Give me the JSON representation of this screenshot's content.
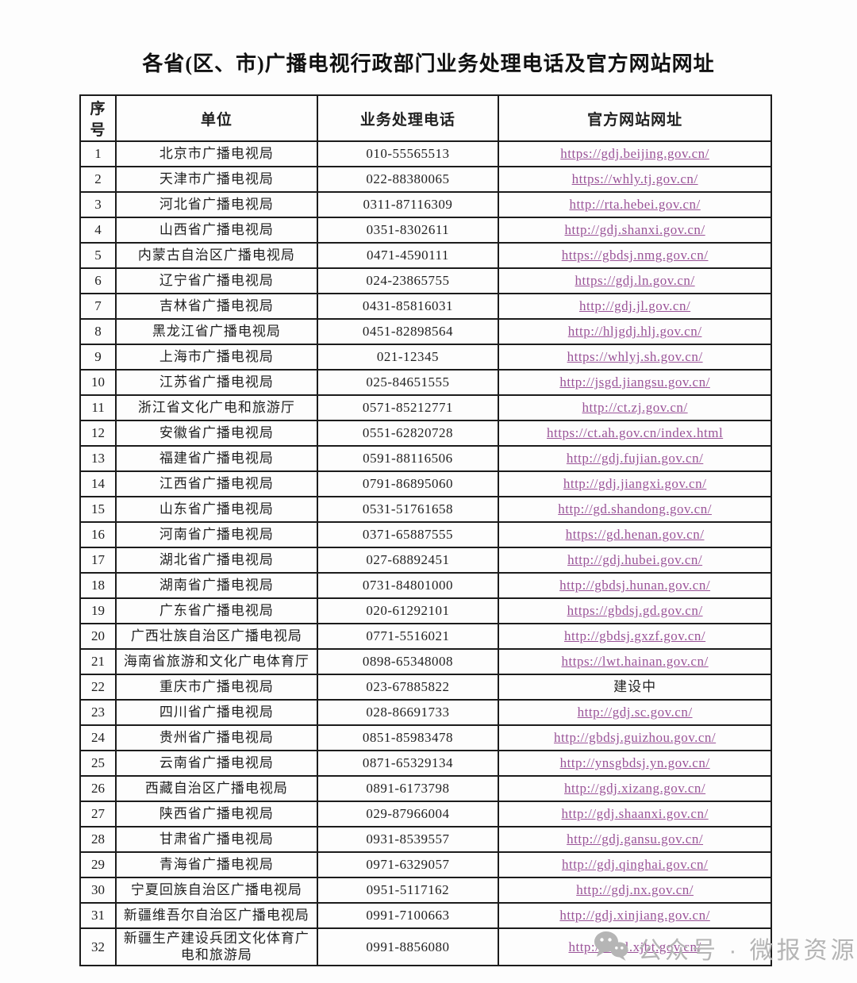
{
  "title": "各省(区、市)广播电视行政部门业务处理电话及官方网站网址",
  "table": {
    "headers": [
      "序号",
      "单位",
      "业务处理电话",
      "官方网站网址"
    ],
    "rows": [
      {
        "no": "1",
        "unit": "北京市广播电视局",
        "phone": "010-55565513",
        "site": "https://gdj.beijing.gov.cn/",
        "is_link": true
      },
      {
        "no": "2",
        "unit": "天津市广播电视局",
        "phone": "022-88380065",
        "site": "https://whly.tj.gov.cn/",
        "is_link": true
      },
      {
        "no": "3",
        "unit": "河北省广播电视局",
        "phone": "0311-87116309",
        "site": "http://rta.hebei.gov.cn/",
        "is_link": true
      },
      {
        "no": "4",
        "unit": "山西省广播电视局",
        "phone": "0351-8302611",
        "site": "http://gdj.shanxi.gov.cn/",
        "is_link": true
      },
      {
        "no": "5",
        "unit": "内蒙古自治区广播电视局",
        "phone": "0471-4590111",
        "site": "https://gbdsj.nmg.gov.cn/",
        "is_link": true
      },
      {
        "no": "6",
        "unit": "辽宁省广播电视局",
        "phone": "024-23865755",
        "site": "https://gdj.ln.gov.cn/",
        "is_link": true
      },
      {
        "no": "7",
        "unit": "吉林省广播电视局",
        "phone": "0431-85816031",
        "site": "http://gdj.jl.gov.cn/",
        "is_link": true
      },
      {
        "no": "8",
        "unit": "黑龙江省广播电视局",
        "phone": "0451-82898564",
        "site": "http://hljgdj.hlj.gov.cn/",
        "is_link": true
      },
      {
        "no": "9",
        "unit": "上海市广播电视局",
        "phone": "021-12345",
        "site": "https://whlyj.sh.gov.cn/",
        "is_link": true
      },
      {
        "no": "10",
        "unit": "江苏省广播电视局",
        "phone": "025-84651555",
        "site": "http://jsgd.jiangsu.gov.cn/",
        "is_link": true
      },
      {
        "no": "11",
        "unit": "浙江省文化广电和旅游厅",
        "phone": "0571-85212771",
        "site": "http://ct.zj.gov.cn/",
        "is_link": true
      },
      {
        "no": "12",
        "unit": "安徽省广播电视局",
        "phone": "0551-62820728",
        "site": "https://ct.ah.gov.cn/index.html",
        "is_link": true
      },
      {
        "no": "13",
        "unit": "福建省广播电视局",
        "phone": "0591-88116506",
        "site": "http://gdj.fujian.gov.cn/",
        "is_link": true
      },
      {
        "no": "14",
        "unit": "江西省广播电视局",
        "phone": "0791-86895060",
        "site": "http://gdj.jiangxi.gov.cn/",
        "is_link": true
      },
      {
        "no": "15",
        "unit": "山东省广播电视局",
        "phone": "0531-51761658",
        "site": "http://gd.shandong.gov.cn/",
        "is_link": true
      },
      {
        "no": "16",
        "unit": "河南省广播电视局",
        "phone": "0371-65887555",
        "site": "https://gd.henan.gov.cn/",
        "is_link": true
      },
      {
        "no": "17",
        "unit": "湖北省广播电视局",
        "phone": "027-68892451",
        "site": "http://gdj.hubei.gov.cn/",
        "is_link": true
      },
      {
        "no": "18",
        "unit": "湖南省广播电视局",
        "phone": "0731-84801000",
        "site": "http://gbdsj.hunan.gov.cn/",
        "is_link": true
      },
      {
        "no": "19",
        "unit": "广东省广播电视局",
        "phone": "020-61292101",
        "site": "https://gbdsj.gd.gov.cn/",
        "is_link": true
      },
      {
        "no": "20",
        "unit": "广西壮族自治区广播电视局",
        "phone": "0771-5516021",
        "site": "http://gbdsj.gxzf.gov.cn/",
        "is_link": true
      },
      {
        "no": "21",
        "unit": "海南省旅游和文化广电体育厅",
        "phone": "0898-65348008",
        "site": "https://lwt.hainan.gov.cn/",
        "is_link": true
      },
      {
        "no": "22",
        "unit": "重庆市广播电视局",
        "phone": "023-67885822",
        "site": "建设中",
        "is_link": false
      },
      {
        "no": "23",
        "unit": "四川省广播电视局",
        "phone": "028-86691733",
        "site": "http://gdj.sc.gov.cn/",
        "is_link": true
      },
      {
        "no": "24",
        "unit": "贵州省广播电视局",
        "phone": "0851-85983478",
        "site": "http://gbdsj.guizhou.gov.cn/",
        "is_link": true
      },
      {
        "no": "25",
        "unit": "云南省广播电视局",
        "phone": "0871-65329134",
        "site": "http://ynsgbdsj.yn.gov.cn/",
        "is_link": true
      },
      {
        "no": "26",
        "unit": "西藏自治区广播电视局",
        "phone": "0891-6173798",
        "site": "http://gdj.xizang.gov.cn/",
        "is_link": true
      },
      {
        "no": "27",
        "unit": "陕西省广播电视局",
        "phone": "029-87966004",
        "site": "http://gdj.shaanxi.gov.cn/",
        "is_link": true
      },
      {
        "no": "28",
        "unit": "甘肃省广播电视局",
        "phone": "0931-8539557",
        "site": "http://gdj.gansu.gov.cn/",
        "is_link": true
      },
      {
        "no": "29",
        "unit": "青海省广播电视局",
        "phone": "0971-6329057",
        "site": "http://gdj.qinghai.gov.cn/",
        "is_link": true
      },
      {
        "no": "30",
        "unit": "宁夏回族自治区广播电视局",
        "phone": "0951-5117162",
        "site": "http://gdj.nx.gov.cn/",
        "is_link": true
      },
      {
        "no": "31",
        "unit": "新疆维吾尔自治区广播电视局",
        "phone": "0991-7100663",
        "site": "http://gdj.xinjiang.gov.cn/",
        "is_link": true
      },
      {
        "no": "32",
        "unit": "新疆生产建设兵团文化体育广电和旅游局",
        "phone": "0991-8856080",
        "site": "http://wtgl.xjbt.gov.cn/",
        "is_link": true
      }
    ]
  },
  "watermark": {
    "icon": "wechat-icon",
    "text": "公众号 · 微报资源"
  },
  "colors": {
    "link": "#9a5398",
    "border": "#1c1c1c",
    "text": "#1f1f1f",
    "watermark": "#b5b5b5"
  }
}
